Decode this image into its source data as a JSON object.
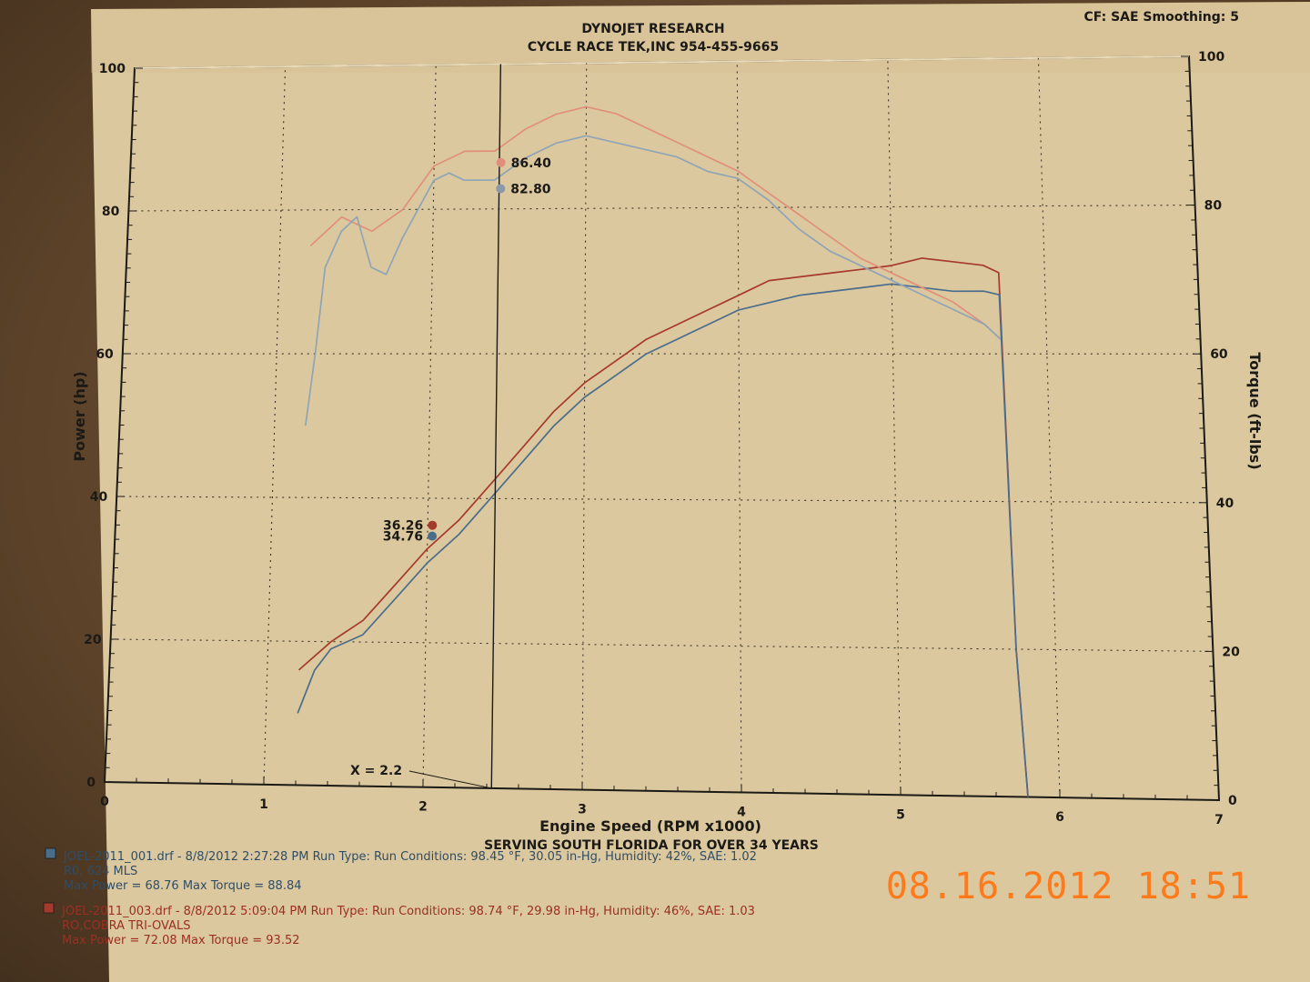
{
  "header": {
    "company": "DYNOJET RESEARCH",
    "shop": "CYCLE RACE TEK,INC 954-455-9665",
    "settings": "CF: SAE  Smoothing: 5"
  },
  "footer": {
    "slogan": "SERVING SOUTH FLORIDA FOR OVER 34 YEARS"
  },
  "cursor": {
    "label": "X = 2.2",
    "x": 2.2,
    "vertical_line_x": 2.43
  },
  "timestamp": "08.16.2012  18:51",
  "runs": [
    {
      "color": "#4a6d8c",
      "line1": "JOEL-2011_001.drf - 8/8/2012 2:27:28 PM  Run Type:   Run Conditions: 98.45 °F, 30.05 in-Hg,  Humidity:  42%, SAE: 1.02",
      "line2": "R0, 624 MLS",
      "line3": "Max Power = 68.76  Max Torque = 88.84"
    },
    {
      "color": "#a53a2c",
      "line1": "JOEL-2011_003.drf - 8/8/2012 5:09:04 PM  Run Type:   Run Conditions: 98.74 °F, 29.98 in-Hg,  Humidity:  46%, SAE: 1.03",
      "line2": "RO,COBRA TRI-OVALS",
      "line3": "Max Power = 72.08  Max Torque = 93.52"
    }
  ],
  "chart_data": {
    "type": "line",
    "title": "DYNOJET RESEARCH",
    "xlabel": "Engine Speed (RPM x1000)",
    "ylabel": "Power (hp)",
    "y2label": "Torque (ft-lbs)",
    "xlim": [
      0,
      7
    ],
    "ylim": [
      0,
      100
    ],
    "y2lim": [
      0,
      100
    ],
    "xticks": [
      "0",
      "1",
      "2",
      "3",
      "4",
      "5",
      "6",
      "7"
    ],
    "yticks": [
      "0",
      "20",
      "40",
      "60",
      "80",
      "100"
    ],
    "y2ticks": [
      "0",
      "20",
      "40",
      "60",
      "80",
      "100"
    ],
    "grid": true,
    "series": [
      {
        "axis": "power",
        "color": "#a53a2c",
        "x": [
          1.2,
          1.4,
          1.6,
          1.8,
          2.0,
          2.2,
          2.4,
          2.6,
          2.8,
          3.0,
          3.2,
          3.4,
          3.6,
          3.8,
          4.0,
          4.2,
          4.4,
          4.6,
          4.8,
          5.0,
          5.2,
          5.4,
          5.6,
          5.7,
          5.75,
          5.8
        ],
        "values": [
          16,
          20,
          23,
          28,
          33,
          37,
          42,
          47,
          52,
          56,
          59,
          62,
          64,
          66,
          68,
          70,
          70.5,
          71,
          71.5,
          72,
          73,
          72.5,
          72,
          71,
          20,
          0
        ]
      },
      {
        "axis": "power",
        "color": "#4a6d8c",
        "x": [
          1.2,
          1.3,
          1.4,
          1.5,
          1.6,
          1.8,
          2.0,
          2.2,
          2.4,
          2.6,
          2.8,
          3.0,
          3.2,
          3.4,
          3.6,
          3.8,
          4.0,
          4.2,
          4.4,
          4.6,
          4.8,
          5.0,
          5.2,
          5.4,
          5.6,
          5.7,
          5.75,
          5.8
        ],
        "values": [
          10,
          16,
          19,
          20,
          21,
          26,
          31,
          35,
          40,
          45,
          50,
          54,
          57,
          60,
          62,
          64,
          66,
          67,
          68,
          68.5,
          69,
          69.5,
          69,
          68.5,
          68.5,
          68,
          20,
          0
        ]
      },
      {
        "axis": "torque",
        "color": "#e08f7c",
        "x": [
          1.2,
          1.3,
          1.4,
          1.5,
          1.6,
          1.8,
          2.0,
          2.2,
          2.4,
          2.6,
          2.8,
          3.0,
          3.2,
          3.4,
          3.6,
          3.8,
          4.0,
          4.2,
          4.4,
          4.6,
          4.8,
          5.0,
          5.2,
          5.4,
          5.6,
          5.7
        ],
        "values": [
          75,
          77,
          79,
          78,
          77,
          80,
          86,
          88,
          88,
          91,
          93,
          94,
          93,
          91,
          89,
          87,
          85,
          82,
          79,
          76,
          73,
          71,
          69,
          67,
          64,
          62
        ]
      },
      {
        "axis": "torque",
        "color": "#8fa4b6",
        "x": [
          1.2,
          1.25,
          1.3,
          1.4,
          1.5,
          1.6,
          1.7,
          1.8,
          2.0,
          2.1,
          2.2,
          2.4,
          2.6,
          2.8,
          3.0,
          3.2,
          3.4,
          3.6,
          3.8,
          4.0,
          4.2,
          4.4,
          4.6,
          4.8,
          5.0,
          5.2,
          5.4,
          5.6,
          5.7
        ],
        "values": [
          50,
          60,
          72,
          77,
          79,
          72,
          71,
          76,
          84,
          85,
          84,
          84,
          87,
          89,
          90,
          89,
          88,
          87,
          85,
          84,
          81,
          77,
          74,
          72,
          70,
          68,
          66,
          64,
          62
        ]
      }
    ],
    "annotations": [
      {
        "text": "86.40",
        "x": 2.44,
        "y": 86.4,
        "axis": "torque",
        "color": "#e08f7c"
      },
      {
        "text": "82.80",
        "x": 2.44,
        "y": 82.8,
        "axis": "torque",
        "color": "#8a98a8"
      },
      {
        "text": "36.26",
        "x": 2.03,
        "y": 36.26,
        "axis": "power",
        "color": "#a53a2c"
      },
      {
        "text": "34.76",
        "x": 2.03,
        "y": 34.76,
        "axis": "power",
        "color": "#4a6d8c"
      }
    ]
  }
}
